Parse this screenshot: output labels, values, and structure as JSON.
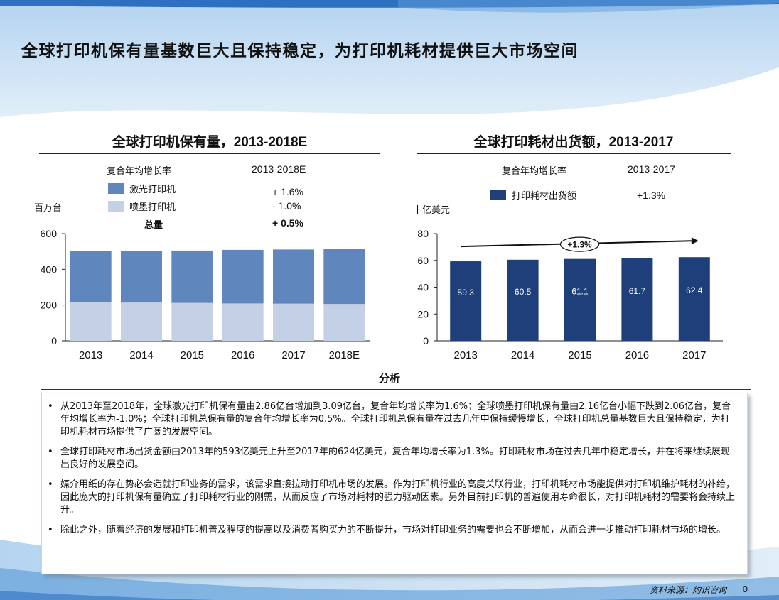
{
  "page": {
    "title": "全球打印机保有量基数巨大且保持稳定，为打印机耗材提供巨大市场空间",
    "page_number": "0"
  },
  "left_chart": {
    "title_cn": "全球打印机保有量，",
    "title_years": "2013-2018E",
    "legend_header": {
      "label": "复合年均增长率",
      "period": "2013-2018E"
    },
    "legend_items": [
      {
        "name": "激光打印机",
        "value": "+ 1.6%",
        "color": "#5f86bd"
      },
      {
        "name": "喷墨打印机",
        "value": "-  1.0%",
        "color": "#c3d0e6"
      }
    ],
    "total": {
      "name": "总量",
      "value": "+ 0.5%"
    },
    "unit": "百万台"
  },
  "right_chart": {
    "title_cn": "全球打印耗材出货额，",
    "title_years": "2013-2017",
    "legend_header": {
      "label": "复合年均增长率",
      "period": "2013-2017"
    },
    "legend_items": [
      {
        "name": "打印耗材出货额",
        "value": "+1.3%",
        "color": "#1f3f7a"
      }
    ],
    "unit": "十亿美元",
    "trend_label": "+1.3%"
  },
  "analysis": {
    "title": "分析",
    "bullets": [
      "从2013年至2018年，全球激光打印机保有量由2.86亿台增加到3.09亿台，复合年均增长率为1.6%；全球喷墨打印机保有量由2.16亿台小幅下跌到2.06亿台，复合年均增长率为-1.0%；全球打印机总保有量的复合年均增长率为0.5%。全球打印机总保有量在过去几年中保持缓慢增长，全球打印机总量基数巨大且保持稳定，为打印机耗材市场提供了广阔的发展空间。",
      "全球打印耗材市场出货金额由2013年的593亿美元上升至2017年的624亿美元，复合年均增长率为1.3%。打印耗材市场在过去几年中稳定增长，并在将来继续展现出良好的发展空间。",
      "媒介用纸的存在势必会造就打印业务的需求，该需求直接拉动打印机市场的发展。作为打印机行业的高度关联行业，打印机耗材市场能提供对打印机维护耗材的补给，因此庞大的打印机保有量确立了打印耗材行业的刚需，从而反应了市场对耗材的强力驱动因素。另外目前打印机的普遍使用寿命很长，对打印机耗材的需要将会持续上升。",
      "除此之外，随着经济的发展和打印机普及程度的提高以及消费者购买力的不断提升，市场对打印业务的需要也会不断增加，从而会进一步推动打印耗材市场的增长。"
    ]
  },
  "source": "资料来源：灼识咨询",
  "chart_data": [
    {
      "type": "bar",
      "stacked": true,
      "categories": [
        "2013",
        "2014",
        "2015",
        "2016",
        "2017",
        "2018E"
      ],
      "series": [
        {
          "name": "激光打印机",
          "values": [
            286,
            290,
            293,
            300,
            303,
            309
          ],
          "color": "#5f86bd"
        },
        {
          "name": "喷墨打印机",
          "values": [
            216,
            214,
            212,
            209,
            208,
            206
          ],
          "color": "#c3d0e6"
        }
      ],
      "ylim": [
        0,
        600
      ],
      "yticks": [
        "0",
        "200",
        "400",
        "600"
      ]
    },
    {
      "type": "bar",
      "categories": [
        "2013",
        "2014",
        "2015",
        "2016",
        "2017"
      ],
      "series": [
        {
          "name": "打印耗材出货额",
          "values": [
            59.3,
            60.5,
            61.1,
            61.7,
            62.4
          ],
          "color": "#1f3f7a"
        }
      ],
      "value_labels": [
        "59.3",
        "60.5",
        "61.1",
        "61.7",
        "62.4"
      ],
      "ylim": [
        0,
        80
      ],
      "yticks": [
        "0",
        "20",
        "40",
        "60",
        "80"
      ]
    }
  ]
}
